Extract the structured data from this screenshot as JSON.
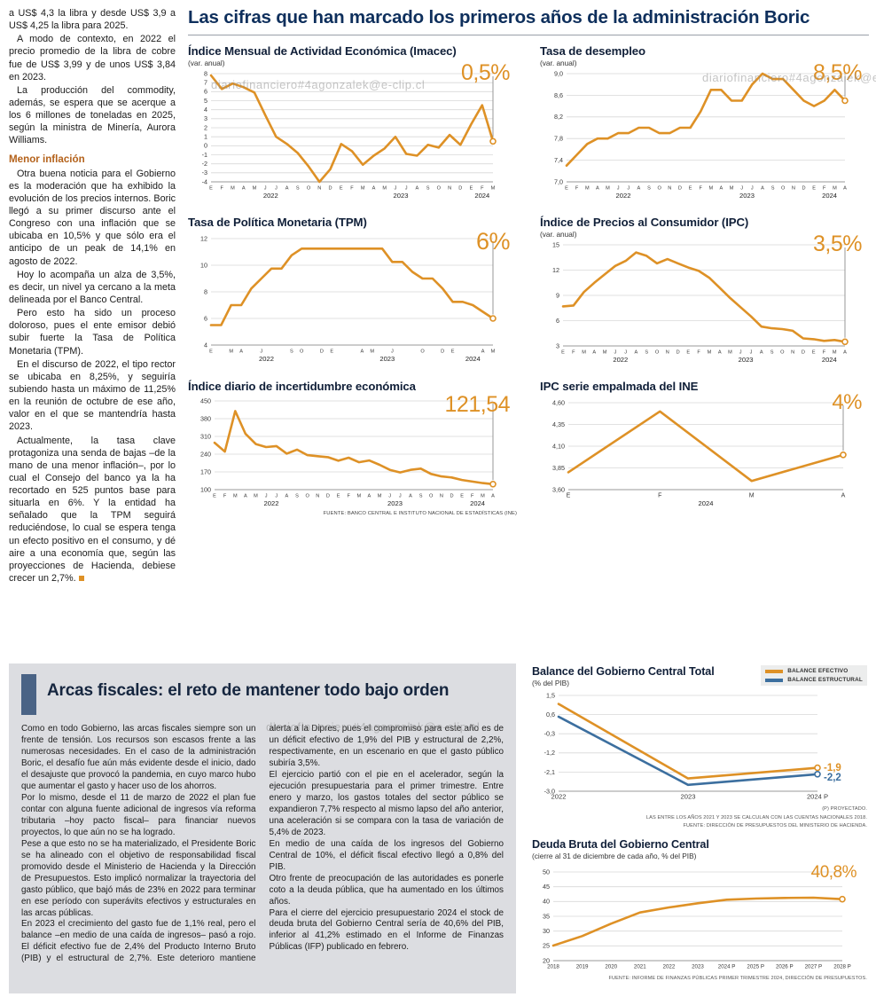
{
  "colors": {
    "orange": "#DE9126",
    "blue": "#3C6F9F",
    "navy": "#0E2F5C",
    "gray_panel": "#dcdde1"
  },
  "watermark": {
    "text": "diariofinanciero#4agonzalek@e-clip.cl"
  },
  "header": {
    "title": "Las cifras que han marcado los primeros años de la administración Boric"
  },
  "left_article": {
    "paragraphs_top": [
      "a US$ 4,3 la libra y desde US$ 3,9 a US$ 4,25 la libra para 2025.",
      "A modo de contexto, en 2022 el precio promedio de la libra de cobre fue de US$ 3,99 y de unos US$ 3,84 en 2023.",
      "La producción del commodity, además, se espera que se acerque a los 6 millones de toneladas en 2025, según la ministra de Minería, Aurora Williams."
    ],
    "subhead": "Menor inflación",
    "paragraphs_bottom": [
      "Otra buena noticia para el Gobierno es la moderación que ha exhibido la evolución de los precios internos. Boric llegó a su primer discurso ante el Congreso con una inflación que se ubicaba en 10,5% y que sólo era el anticipo de un peak de 14,1% en agosto de 2022.",
      "Hoy lo acompaña un alza de 3,5%, es decir, un nivel ya cercano a la meta delineada por el Banco Central.",
      "Pero esto ha sido un proceso doloroso, pues el ente emisor debió subir fuerte la Tasa de Política Monetaria (TPM).",
      "En el discurso de 2022, el tipo rector se ubicaba en 8,25%, y seguiría subiendo hasta un máximo de 11,25% en la reunión de octubre de ese año, valor en el que se mantendría hasta 2023.",
      "Actualmente, la tasa clave protagoniza una senda de bajas –de la mano de una menor inflación–, por lo cual el Consejo del banco ya la ha recortado en 525 puntos base para situarla en 6%. Y la entidad ha señalado que la TPM seguirá reduciéndose, lo cual se espera tenga un efecto positivo en el consumo, y dé aire a una economía que, según las proyecciones de Hacienda, debiese crecer un 2,7%."
    ]
  },
  "fiscal": {
    "title": "Arcas fiscales: el reto de mantener todo bajo orden",
    "paragraphs": [
      "Como en todo Gobierno, las arcas fiscales siempre son un frente de tensión. Los recursos son escasos frente a las numerosas necesidades. En el caso de la administración Boric, el desafío fue aún más evidente desde el inicio, dado el desajuste que provocó la pandemia, en cuyo marco hubo que aumentar el gasto y hacer uso de los ahorros.",
      "Por lo mismo, desde el 11 de marzo de 2022 el plan fue contar con alguna fuente adicional de ingresos vía reforma tributaria –hoy pacto fiscal– para financiar nuevos proyectos, lo que aún no se ha logrado.",
      "Pese a que esto no se ha materializado, el Presidente Boric se ha alineado con el objetivo de responsabilidad fiscal promovido desde el Ministerio de Hacienda y la Dirección de Presupuestos. Esto implicó normalizar la trayectoria del gasto público, que bajó más de 23% en 2022 para terminar en ese período con superávits efectivos y estructurales en las arcas públicas.",
      "En 2023 el crecimiento del gasto fue de 1,1% real, pero el balance –en medio de una caída de ingresos– pasó a rojo. El déficit efectivo fue de 2,4% del Producto Interno Bruto (PIB) y el estructural de 2,7%. Este deterioro mantiene alerta a la Dipres, pues el compromiso para este año es de un déficit efectivo de 1,9% del PIB y estructural de 2,2%, respectivamente, en un escenario en que el gasto público subiría 3,5%.",
      "El ejercicio partió con el pie en el acelerador, según la ejecución presupuestaria para el primer trimestre. Entre enero y marzo, los gastos totales del sector público se expandieron 7,7% respecto al mismo lapso del año anterior, una aceleración si se compara con la tasa de variación de 5,4% de 2023.",
      "En medio de una caída de los ingresos del Gobierno Central de 10%, el déficit fiscal efectivo llegó a 0,8% del PIB.",
      "Otro frente de preocupación de las autoridades es ponerle coto a la deuda pública, que ha aumentado en los últimos años.",
      "Para el cierre del ejercicio presupuestario 2024 el stock de deuda bruta del Gobierno Central sería de 40,6% del PIB, inferior al 41,2% estimado en el Informe de Finanzas Públicas (IFP) publicado en febrero."
    ]
  },
  "chart_data": [
    {
      "name": "imacec",
      "type": "line",
      "title": "Índice Mensual de Actividad Económica (Imacec)",
      "subtitle": "(var. anual)",
      "big_value": "0,5%",
      "ylim": [
        -4,
        8
      ],
      "y_ticks": [
        "8",
        "7",
        "6",
        "5",
        "4",
        "3",
        "2",
        "1",
        "0",
        "-1",
        "-2",
        "-3",
        "-4"
      ],
      "x_labels": [
        "E",
        "F",
        "M",
        "A",
        "M",
        "J",
        "J",
        "A",
        "S",
        "O",
        "N",
        "D",
        "E",
        "F",
        "M",
        "A",
        "M",
        "J",
        "J",
        "A",
        "S",
        "O",
        "N",
        "D",
        "E",
        "F",
        "M"
      ],
      "years": [
        {
          "label": "2022",
          "start": 0,
          "end": 11
        },
        {
          "label": "2023",
          "start": 12,
          "end": 23
        },
        {
          "label": "2024",
          "start": 24,
          "end": 26
        }
      ],
      "marker_line": true,
      "series": [
        {
          "name": "Imacec",
          "color": "#DE9126",
          "values": [
            7.8,
            6.3,
            6.9,
            6.5,
            5.9,
            3.4,
            1.0,
            0.2,
            -0.8,
            -2.3,
            -4.0,
            -2.6,
            0.2,
            -0.6,
            -2.1,
            -1.1,
            -0.3,
            1.0,
            -0.9,
            -1.1,
            0.1,
            -0.2,
            1.2,
            0.1,
            2.4,
            4.5,
            0.5
          ]
        }
      ]
    },
    {
      "name": "desempleo",
      "type": "line",
      "title": "Tasa de desempleo",
      "subtitle": "(var. anual)",
      "big_value": "8,5%",
      "ylim": [
        7.0,
        9.0
      ],
      "y_ticks": [
        "9,0",
        "8,6",
        "8,2",
        "7,8",
        "7,4",
        "7,0"
      ],
      "x_labels": [
        "E",
        "F",
        "M",
        "A",
        "M",
        "J",
        "J",
        "A",
        "S",
        "O",
        "N",
        "D",
        "E",
        "F",
        "M",
        "A",
        "M",
        "J",
        "J",
        "A",
        "S",
        "O",
        "N",
        "D",
        "E",
        "F",
        "M",
        "A"
      ],
      "years": [
        {
          "label": "2022",
          "start": 0,
          "end": 11
        },
        {
          "label": "2023",
          "start": 12,
          "end": 23
        },
        {
          "label": "2024",
          "start": 24,
          "end": 27
        }
      ],
      "marker_line": true,
      "series": [
        {
          "name": "Tasa de desempleo",
          "color": "#DE9126",
          "values": [
            7.3,
            7.5,
            7.7,
            7.8,
            7.8,
            7.9,
            7.9,
            8.0,
            8.0,
            7.9,
            7.9,
            8.0,
            8.0,
            8.3,
            8.7,
            8.7,
            8.5,
            8.5,
            8.8,
            9.0,
            8.9,
            8.9,
            8.7,
            8.5,
            8.4,
            8.5,
            8.7,
            8.5
          ]
        }
      ]
    },
    {
      "name": "tpm",
      "type": "line",
      "title": "Tasa de Política Monetaria (TPM)",
      "subtitle": "",
      "big_value": "6%",
      "ylim": [
        4,
        12
      ],
      "y_ticks": [
        "12",
        "10",
        "8",
        "6",
        "4"
      ],
      "x_labels": [
        "E",
        "",
        "M",
        "A",
        "",
        "J",
        "",
        "",
        "S",
        "O",
        "",
        "D",
        "E",
        "",
        "",
        "A",
        "M",
        "",
        "J",
        "",
        "",
        "O",
        "",
        "D",
        "E",
        "",
        "",
        "A",
        "M"
      ],
      "years": [
        {
          "label": "2022",
          "start": 0,
          "end": 11
        },
        {
          "label": "2023",
          "start": 12,
          "end": 23
        },
        {
          "label": "2024",
          "start": 24,
          "end": 28
        }
      ],
      "marker_line": true,
      "series": [
        {
          "name": "TPM",
          "color": "#DE9126",
          "values": [
            5.5,
            5.5,
            7.0,
            7.0,
            8.25,
            9.0,
            9.75,
            9.75,
            10.75,
            11.25,
            11.25,
            11.25,
            11.25,
            11.25,
            11.25,
            11.25,
            11.25,
            11.25,
            10.25,
            10.25,
            9.5,
            9.0,
            9.0,
            8.25,
            7.25,
            7.25,
            7.0,
            6.5,
            6.0
          ]
        }
      ]
    },
    {
      "name": "ipc",
      "type": "line",
      "title": "Índice de Precios al Consumidor (IPC)",
      "subtitle": "(var. anual)",
      "big_value": "3,5%",
      "ylim": [
        3,
        15
      ],
      "y_ticks": [
        "15",
        "12",
        "9",
        "6",
        "3"
      ],
      "x_labels": [
        "E",
        "F",
        "M",
        "A",
        "M",
        "J",
        "J",
        "A",
        "S",
        "O",
        "N",
        "D",
        "E",
        "F",
        "M",
        "A",
        "M",
        "J",
        "J",
        "A",
        "S",
        "O",
        "N",
        "D",
        "E",
        "F",
        "M",
        "A"
      ],
      "years": [
        {
          "label": "2022",
          "start": 0,
          "end": 11
        },
        {
          "label": "2023",
          "start": 12,
          "end": 23
        },
        {
          "label": "2024",
          "start": 24,
          "end": 27
        }
      ],
      "marker_line": true,
      "series": [
        {
          "name": "IPC",
          "color": "#DE9126",
          "values": [
            7.7,
            7.8,
            9.4,
            10.5,
            11.5,
            12.5,
            13.1,
            14.1,
            13.7,
            12.8,
            13.3,
            12.8,
            12.3,
            11.9,
            11.1,
            9.9,
            8.7,
            7.6,
            6.5,
            5.3,
            5.1,
            5.0,
            4.8,
            3.9,
            3.8,
            3.6,
            3.7,
            3.5
          ]
        }
      ]
    },
    {
      "name": "incertidumbre",
      "type": "line",
      "title": "Índice diario de incertidumbre económica",
      "subtitle": "",
      "big_value": "121,54",
      "ylim": [
        100,
        450
      ],
      "y_ticks": [
        "450",
        "380",
        "310",
        "240",
        "170",
        "100"
      ],
      "x_labels": [
        "E",
        "F",
        "M",
        "A",
        "M",
        "J",
        "J",
        "A",
        "S",
        "O",
        "N",
        "D",
        "E",
        "F",
        "M",
        "A",
        "M",
        "J",
        "J",
        "A",
        "S",
        "O",
        "N",
        "D",
        "E",
        "F",
        "M",
        "A"
      ],
      "years": [
        {
          "label": "2022",
          "start": 0,
          "end": 11
        },
        {
          "label": "2023",
          "start": 12,
          "end": 23
        },
        {
          "label": "2024",
          "start": 24,
          "end": 27
        }
      ],
      "marker_line": true,
      "source": "FUENTE: BANCO CENTRAL E INSTITUTO NACIONAL DE ESTADÍSTICAS (INE)",
      "series": [
        {
          "name": "Incertidumbre económica",
          "color": "#DE9126",
          "values": [
            285,
            250,
            410,
            320,
            280,
            268,
            272,
            242,
            258,
            236,
            232,
            228,
            214,
            226,
            208,
            215,
            198,
            178,
            168,
            178,
            183,
            162,
            152,
            148,
            138,
            132,
            126,
            121.54
          ]
        }
      ]
    },
    {
      "name": "ipc_empalmada",
      "type": "line",
      "title": "IPC serie empalmada del INE",
      "subtitle": "",
      "big_value": "4%",
      "ylim": [
        3.6,
        4.6
      ],
      "y_ticks": [
        "4,60",
        "4,35",
        "4,10",
        "3,85",
        "3,60"
      ],
      "x_labels": [
        "E",
        "F",
        "M",
        "A"
      ],
      "years": [
        {
          "label": "2024",
          "start": 0,
          "end": 3
        }
      ],
      "marker_line": true,
      "series": [
        {
          "name": "IPC empalmada",
          "color": "#DE9126",
          "values": [
            3.8,
            4.5,
            3.7,
            4.0
          ]
        }
      ]
    },
    {
      "name": "balance_gobierno_central",
      "type": "line",
      "title": "Balance del Gobierno Central Total",
      "subtitle": "(% del PIB)",
      "ylim": [
        -3.0,
        1.5
      ],
      "y_ticks": [
        "1,5",
        "0,6",
        "-0,3",
        "-1,2",
        "-2,1",
        "-3,0"
      ],
      "x_labels": [
        "2022",
        "2023",
        "2024 P"
      ],
      "years": [],
      "marker_line": false,
      "footnotes": [
        "(P) PROYECTADO.",
        "LAS ENTRE LOS AÑOS 2021 Y 2023 SE CALCULAN CON LAS CUENTAS NACIONALES 2018.",
        "FUENTE: DIRECCIÓN DE PRESUPUESTOS DEL MINISTERIO DE HACIENDA."
      ],
      "series": [
        {
          "name": "BALANCE EFECTIVO",
          "color": "#DE9126",
          "values": [
            1.1,
            -2.4,
            -1.9
          ],
          "end_label": "-1,9"
        },
        {
          "name": "BALANCE ESTRUCTURAL",
          "color": "#3C6F9F",
          "values": [
            0.5,
            -2.7,
            -2.2
          ],
          "end_label": "-2,2"
        }
      ]
    },
    {
      "name": "deuda_bruta",
      "type": "line",
      "title": "Deuda Bruta del Gobierno Central",
      "subtitle": "(cierre al 31 de diciembre de cada año, % del PIB)",
      "big_value": "40,8%",
      "ylim": [
        20,
        50
      ],
      "y_ticks": [
        "50",
        "45",
        "40",
        "35",
        "30",
        "25",
        "20"
      ],
      "x_labels": [
        "2018",
        "2019",
        "2020",
        "2021",
        "2022",
        "2023",
        "2024 P",
        "2025 P",
        "2026 P",
        "2027 P",
        "2028 P"
      ],
      "years": [],
      "marker_line": false,
      "source": "FUENTE: INFORME DE FINANZAS PÚBLICAS PRIMER TRIMESTRE 2024, DIRECCIÓN DE PRESUPUESTOS.",
      "series": [
        {
          "name": "Deuda bruta",
          "color": "#DE9126",
          "values": [
            25.1,
            28.3,
            32.5,
            36.3,
            38.0,
            39.4,
            40.6,
            41.0,
            41.2,
            41.3,
            40.8
          ]
        }
      ]
    }
  ]
}
